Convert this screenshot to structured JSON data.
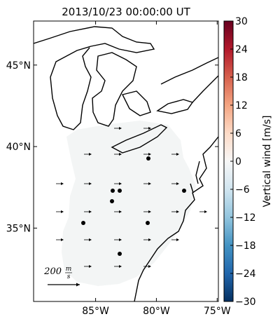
{
  "chart_data": {
    "type": "map",
    "title": "2013/10/23 00:00:00 UT",
    "xlim": [
      -90.1,
      -74.9
    ],
    "ylim": [
      30.5,
      47.7
    ],
    "xticks": [
      {
        "value": -85,
        "label": "85°W"
      },
      {
        "value": -80,
        "label": "80°W"
      },
      {
        "value": -75,
        "label": "75°W"
      }
    ],
    "yticks": [
      {
        "value": 35,
        "label": "35°N"
      },
      {
        "value": 40,
        "label": "40°N"
      },
      {
        "value": 45,
        "label": "45°N"
      }
    ],
    "colorbar": {
      "label": "Vertical wind [m/s]",
      "lim": [
        -30,
        30
      ],
      "ticks": [
        {
          "value": -30,
          "label": "−30"
        },
        {
          "value": -24,
          "label": "−24"
        },
        {
          "value": -18,
          "label": "−18"
        },
        {
          "value": -12,
          "label": "−12"
        },
        {
          "value": -6,
          "label": "−6"
        },
        0,
        6,
        12,
        18,
        24,
        30
      ],
      "colors": [
        "#053061",
        "#2166ac",
        "#4393c3",
        "#92c5de",
        "#d1e5f0",
        "#f7f7f7",
        "#fddbc7",
        "#f4a582",
        "#d6604d",
        "#b2182b",
        "#67001f"
      ]
    },
    "scale": {
      "value": "200",
      "numerator": "m",
      "denominator": "s"
    }
  }
}
